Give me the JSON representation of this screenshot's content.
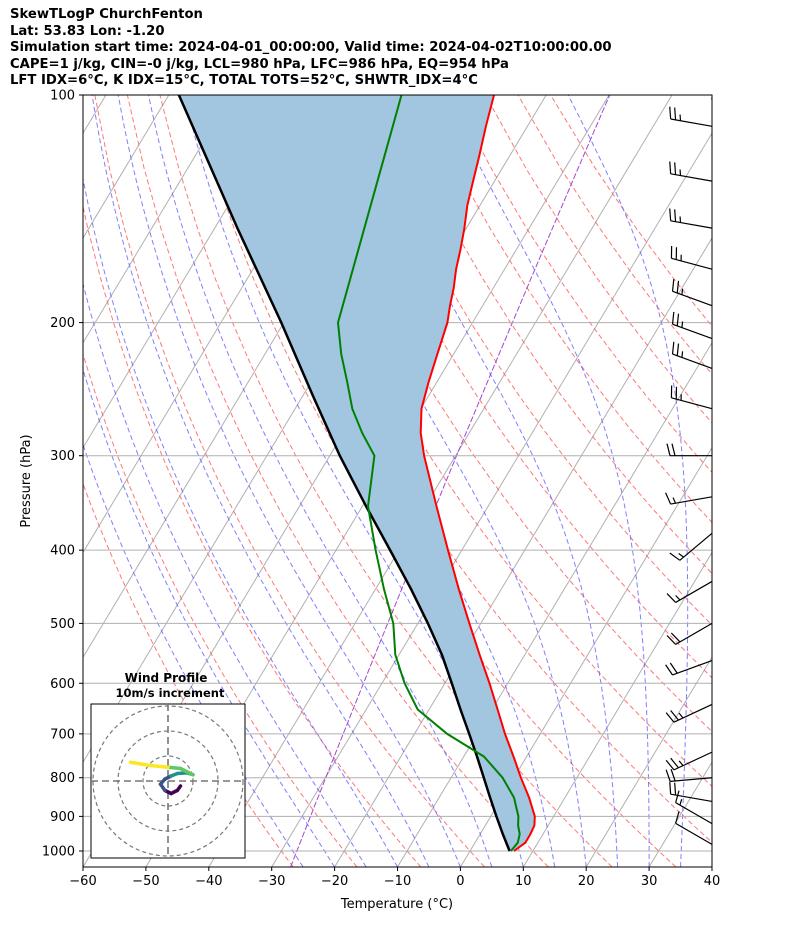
{
  "header": {
    "title": "SkewTLogP ChurchFenton",
    "location": "Lat: 53.83   Lon: -1.20",
    "times": "Simulation start time: 2024-04-01_00:00:00, Valid time: 2024-04-02T10:00:00.00",
    "indices1": "CAPE=1 j/kg, CIN=-0 j/kg, LCL=980 hPa, LFC=986 hPa, EQ=954 hPa",
    "indices2": "LFT IDX=6°C, K IDX=15°C, TOTAL TOTS=52°C, SHWTR_IDX=4°C"
  },
  "chart_data": {
    "type": "line",
    "subtype": "skew-t log-p",
    "xlabel": "Temperature (°C)",
    "ylabel": "Pressure (hPa)",
    "xlim": [
      -60,
      40
    ],
    "ylim": [
      1050,
      100
    ],
    "y_scale": "log",
    "x_ticks": [
      "−60",
      "−50",
      "−40",
      "−30",
      "−20",
      "−10",
      "0",
      "10",
      "20",
      "30",
      "40"
    ],
    "y_ticks": [
      "100",
      "200",
      "300",
      "400",
      "500",
      "600",
      "700",
      "800",
      "900",
      "1000"
    ],
    "grid": true,
    "series": [
      {
        "role": "temperature",
        "color": "#ff0000",
        "p": [
          1000,
          975,
          950,
          925,
          900,
          850,
          800,
          750,
          700,
          650,
          600,
          550,
          500,
          450,
          400,
          350,
          300,
          280,
          260,
          240,
          220,
          200,
          190,
          180,
          170,
          160,
          150,
          140,
          130,
          120,
          110,
          100
        ],
        "t": [
          7,
          8,
          8,
          7.8,
          7,
          4.3,
          1.1,
          -2.1,
          -5.6,
          -9.1,
          -12.9,
          -17.2,
          -21.8,
          -26.8,
          -32.2,
          -38.2,
          -45.0,
          -47.7,
          -49.9,
          -51.3,
          -52.6,
          -54.0,
          -55.2,
          -56.3,
          -57.7,
          -58.9,
          -60.3,
          -62.0,
          -63.4,
          -64.9,
          -66.6,
          -68.3
        ]
      },
      {
        "role": "dewpoint",
        "color": "#008000",
        "p": [
          1000,
          975,
          950,
          925,
          900,
          850,
          800,
          750,
          700,
          650,
          600,
          550,
          500,
          450,
          400,
          350,
          300,
          280,
          260,
          240,
          220,
          200,
          100
        ],
        "t": [
          6.5,
          6.8,
          6.3,
          5.2,
          4.4,
          1.9,
          -1.8,
          -6.8,
          -14.8,
          -21.8,
          -26.4,
          -30.6,
          -33.9,
          -38.7,
          -43.7,
          -49.1,
          -52.9,
          -57.0,
          -60.9,
          -64.2,
          -67.9,
          -71.4,
          -83.0
        ]
      },
      {
        "role": "parcel",
        "color": "#000000",
        "p": [
          1000,
          950,
          900,
          850,
          800,
          750,
          700,
          650,
          600,
          550,
          500,
          450,
          400,
          350,
          300,
          250,
          200,
          150,
          100
        ],
        "t": [
          6.3,
          3.6,
          0.9,
          -1.9,
          -4.8,
          -7.9,
          -11.3,
          -15.0,
          -18.9,
          -23.2,
          -28.4,
          -34.4,
          -41.4,
          -49.4,
          -58.4,
          -68.4,
          -80.4,
          -96.4,
          -118.4
        ]
      }
    ],
    "shading": {
      "between": [
        "temperature",
        "parcel"
      ],
      "color": "#a2c6e0"
    },
    "background_lines": {
      "isotherm_color": "#b0b0b0",
      "dry_adiabat_color": "#ff5555",
      "moist_adiabat_color": "#5555ff",
      "mixing_ratio_color": "#9933cc"
    },
    "wind_barbs": {
      "p": [
        110,
        130,
        150,
        170,
        190,
        210,
        230,
        260,
        300,
        340,
        380,
        440,
        500,
        560,
        640,
        740,
        800,
        860,
        920,
        980
      ],
      "speed_kt": [
        25,
        25,
        25,
        25,
        25,
        25,
        25,
        25,
        20,
        15,
        15,
        15,
        20,
        20,
        25,
        25,
        20,
        20,
        15,
        10
      ],
      "dir_deg": [
        280,
        280,
        280,
        285,
        290,
        290,
        290,
        285,
        270,
        260,
        230,
        240,
        240,
        250,
        245,
        245,
        265,
        280,
        300,
        300
      ]
    },
    "hodograph": {
      "title": "Wind Profile",
      "subtitle": "10m/s increment",
      "u": [
        2,
        1.5,
        0.5,
        -0.5,
        -1.2,
        -0.5,
        0.5,
        1.5,
        3,
        4,
        3,
        2,
        0,
        -3,
        -6
      ],
      "v": [
        -0.8,
        -1.5,
        -2.0,
        -1.5,
        -0.5,
        0.3,
        0.8,
        1.2,
        1.3,
        1.0,
        1.5,
        2.0,
        2.2,
        2.5,
        3.0
      ],
      "colormap": [
        "#440154",
        "#3b528b",
        "#21918c",
        "#5ec962",
        "#fde725"
      ]
    }
  }
}
